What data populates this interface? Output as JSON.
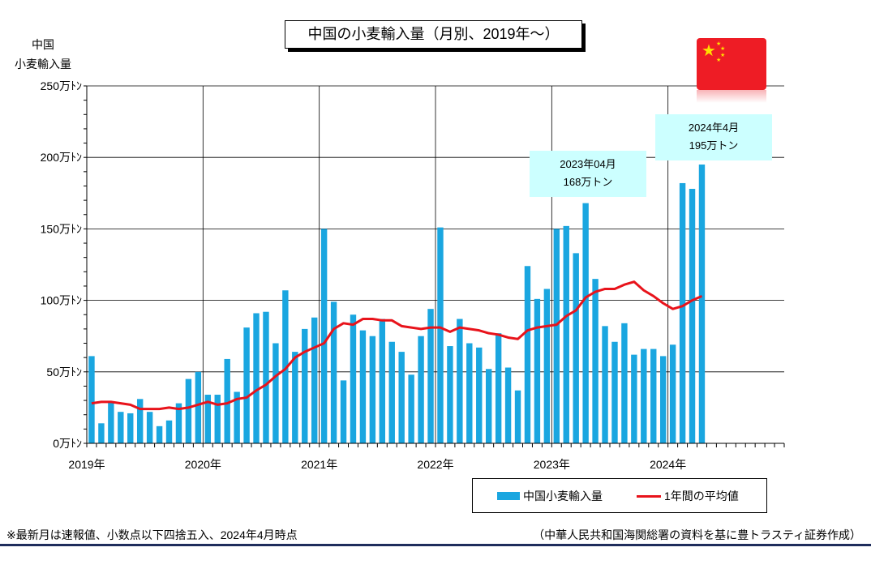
{
  "title": "中国の小麦輸入量（月別、2019年〜）",
  "y_axis_title_line1": "中国",
  "y_axis_title_line2": "小麦輸入量",
  "legend": {
    "bars": "中国小麦輸入量",
    "line": "1年間の平均値"
  },
  "callouts": [
    {
      "line1": "2023年04月",
      "line2": "168万トン"
    },
    {
      "line1": "2024年4月",
      "line2": "195万トン"
    }
  ],
  "footnote": "※最新月は速報値、小数点以下四捨五入、2024年4月時点",
  "source": "（中華人民共和国海関総署の資料を基に豊トラスティ証券作成）",
  "colors": {
    "bars": "#1aa6e0",
    "average_line": "#e8131b",
    "callout_bg": "#ccffff",
    "flag": "#ee1c25",
    "rule": "#1f2d5c"
  },
  "icons": {
    "flag": "china-flag-icon"
  },
  "chart_data": {
    "type": "bar",
    "ylim": [
      0,
      250
    ],
    "xlim_months": 72,
    "y_ticks": [
      0,
      50,
      100,
      150,
      200,
      250
    ],
    "y_tick_labels": [
      "0万ﾄﾝ",
      "50万ﾄﾝ",
      "100万ﾄﾝ",
      "150万ﾄﾝ",
      "200万ﾄﾝ",
      "250万ﾄﾝ"
    ],
    "x_labels": [
      "2019年",
      "2020年",
      "2021年",
      "2022年",
      "2023年",
      "2024年"
    ],
    "grid": "horizontal and yearly vertical",
    "legend_position": "bottom-right",
    "start": "2019-01",
    "series": [
      {
        "name": "中国小麦輸入量",
        "kind": "bar",
        "values": [
          61,
          14,
          29,
          22,
          21,
          31,
          22,
          12,
          16,
          28,
          45,
          50,
          34,
          34,
          59,
          36,
          81,
          91,
          92,
          70,
          107,
          64,
          80,
          88,
          150,
          99,
          44,
          90,
          79,
          75,
          87,
          71,
          64,
          48,
          75,
          94,
          151,
          68,
          87,
          70,
          67,
          52,
          77,
          53,
          37,
          124,
          101,
          108,
          150,
          152,
          133,
          168,
          115,
          82,
          71,
          84,
          62,
          66,
          66,
          61,
          69,
          182,
          178,
          195
        ]
      },
      {
        "name": "1年間の平均値",
        "kind": "line",
        "values": [
          28,
          29,
          29,
          28,
          27,
          24,
          24,
          24,
          25,
          24,
          25,
          27,
          29,
          27,
          28,
          31,
          32,
          37,
          41,
          47,
          52,
          60,
          64,
          67,
          70,
          80,
          84,
          83,
          87,
          87,
          86,
          86,
          82,
          81,
          80,
          81,
          81,
          78,
          81,
          80,
          79,
          77,
          76,
          74,
          73,
          79,
          81,
          82,
          83,
          89,
          93,
          102,
          106,
          108,
          108,
          111,
          113,
          107,
          103,
          98,
          94,
          96,
          100,
          103
        ]
      }
    ]
  }
}
